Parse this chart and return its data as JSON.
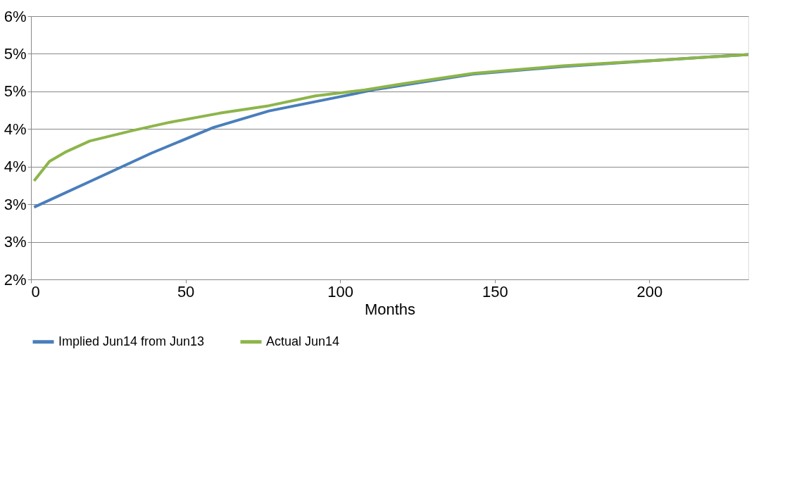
{
  "chart_data": {
    "type": "line",
    "xlabel": "Months",
    "xlim": [
      0,
      232
    ],
    "xticks": [
      0,
      50,
      100,
      150,
      200
    ],
    "ylim": [
      2,
      5.5
    ],
    "yticks": [
      {
        "value": 2,
        "label": "2%"
      },
      {
        "value": 2.5,
        "label": "3%"
      },
      {
        "value": 3,
        "label": "3%"
      },
      {
        "value": 3.5,
        "label": "4%"
      },
      {
        "value": 4,
        "label": "4%"
      },
      {
        "value": 4.5,
        "label": "5%"
      },
      {
        "value": 5,
        "label": "5%"
      },
      {
        "value": 5.5,
        "label": "6%"
      }
    ],
    "grid": "y",
    "legend": "bottom",
    "marker": "none",
    "line_style": "solid",
    "series": [
      {
        "name": "Implied Jun14 from Jun13",
        "color": "#4a7ebb",
        "x": [
          1,
          20,
          39,
          59,
          77,
          100,
          112,
          120,
          143,
          172,
          205,
          232
        ],
        "values": [
          2.96,
          3.32,
          3.68,
          4.02,
          4.24,
          4.43,
          4.53,
          4.58,
          4.73,
          4.83,
          4.92,
          4.99
        ]
      },
      {
        "name": "Actual Jun14",
        "color": "#8db54a",
        "x": [
          1,
          6,
          11,
          19,
          33,
          45,
          61,
          77,
          92,
          108,
          120,
          143,
          172,
          205,
          232
        ],
        "values": [
          3.31,
          3.57,
          3.69,
          3.84,
          3.98,
          4.09,
          4.21,
          4.31,
          4.44,
          4.52,
          4.6,
          4.74,
          4.84,
          4.92,
          4.99
        ]
      }
    ]
  }
}
